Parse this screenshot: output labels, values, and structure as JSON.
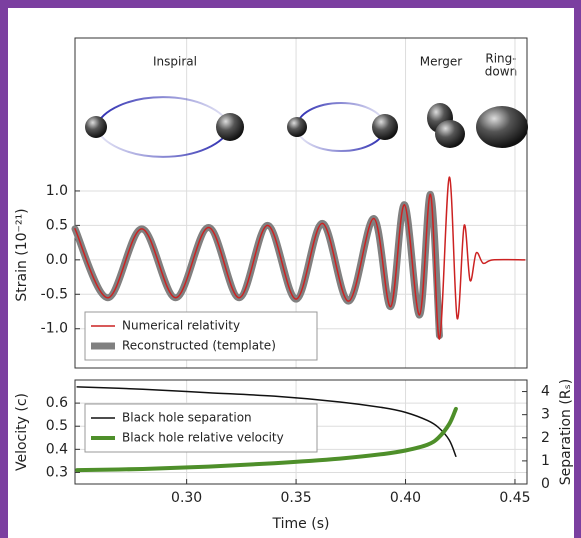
{
  "chart_data": [
    {
      "type": "line",
      "ylabel": "Strain (10⁻²¹)",
      "annotations": [
        "Inspiral",
        "Merger",
        "Ring-",
        "down"
      ],
      "xlim": [
        0.249,
        0.4555
      ],
      "ylim": [
        -1.57,
        3.22
      ],
      "yticks": [
        {
          "value": 1,
          "label": "1.0"
        },
        0.5,
        {
          "value": 0,
          "label": "0.0"
        },
        -0.5,
        {
          "value": -1,
          "label": "-1.0"
        }
      ],
      "grid": true,
      "legend": "lower left",
      "series": [
        {
          "name": "Reconstructed (template)",
          "color": "#808080",
          "width": 7,
          "x": [
            0.249,
            0.264,
            0.2795,
            0.295,
            0.31,
            0.324,
            0.337,
            0.35,
            0.362,
            0.374,
            0.3855,
            0.3932,
            0.3995,
            0.4064,
            0.4114,
            0.4155
          ],
          "values": [
            0.45,
            -0.55,
            0.45,
            -0.55,
            0.47,
            -0.55,
            0.5,
            -0.57,
            0.53,
            -0.6,
            0.6,
            -0.68,
            0.8,
            -0.8,
            0.95,
            -1.1
          ]
        },
        {
          "name": "Numerical relativity",
          "color": "#cc2222",
          "width": 1.5,
          "x": [
            0.249,
            0.264,
            0.2795,
            0.295,
            0.31,
            0.324,
            0.337,
            0.35,
            0.362,
            0.374,
            0.3855,
            0.3932,
            0.3995,
            0.4064,
            0.4114,
            0.4155,
            0.42,
            0.4236,
            0.4268,
            0.4295,
            0.4323,
            0.4355,
            0.44,
            0.4545
          ],
          "values": [
            0.45,
            -0.55,
            0.45,
            -0.55,
            0.47,
            -0.55,
            0.5,
            -0.57,
            0.53,
            -0.6,
            0.6,
            -0.68,
            0.8,
            -0.8,
            0.95,
            -1.15,
            1.2,
            -0.85,
            0.5,
            -0.3,
            0.1,
            -0.05,
            0,
            0
          ]
        }
      ]
    },
    {
      "type": "line",
      "xlabel": "Time (s)",
      "ylabel": "Velocity (c)",
      "y2label": "Separation (Rₛ)",
      "xlim": [
        0.249,
        0.4555
      ],
      "ylim": [
        0.25,
        0.7
      ],
      "y2lim": [
        0,
        4.5
      ],
      "xticks": [
        {
          "value": 0.3,
          "label": "0.30"
        },
        0.35,
        {
          "value": 0.4,
          "label": "0.40"
        },
        0.45
      ],
      "yticks": [
        0.6,
        0.5,
        0.4,
        0.3
      ],
      "y2ticks": [
        4,
        3,
        2,
        1,
        0
      ],
      "grid": true,
      "legend": "upper left",
      "series": [
        {
          "name": "Black hole separation",
          "color": "#111111",
          "width": 1.5,
          "axis": "y2",
          "x": [
            0.25,
            0.28,
            0.31,
            0.34,
            0.37,
            0.39,
            0.4,
            0.41,
            0.415,
            0.42,
            0.423
          ],
          "values": [
            4.2,
            4.1,
            3.95,
            3.8,
            3.55,
            3.3,
            3.1,
            2.75,
            2.45,
            1.9,
            1.2
          ]
        },
        {
          "name": "Black hole relative velocity",
          "color": "#4e8f2a",
          "width": 4,
          "x": [
            0.25,
            0.28,
            0.31,
            0.34,
            0.37,
            0.39,
            0.4,
            0.41,
            0.415,
            0.42,
            0.423
          ],
          "values": [
            0.31,
            0.315,
            0.325,
            0.34,
            0.36,
            0.38,
            0.395,
            0.42,
            0.45,
            0.51,
            0.575
          ]
        }
      ]
    }
  ]
}
